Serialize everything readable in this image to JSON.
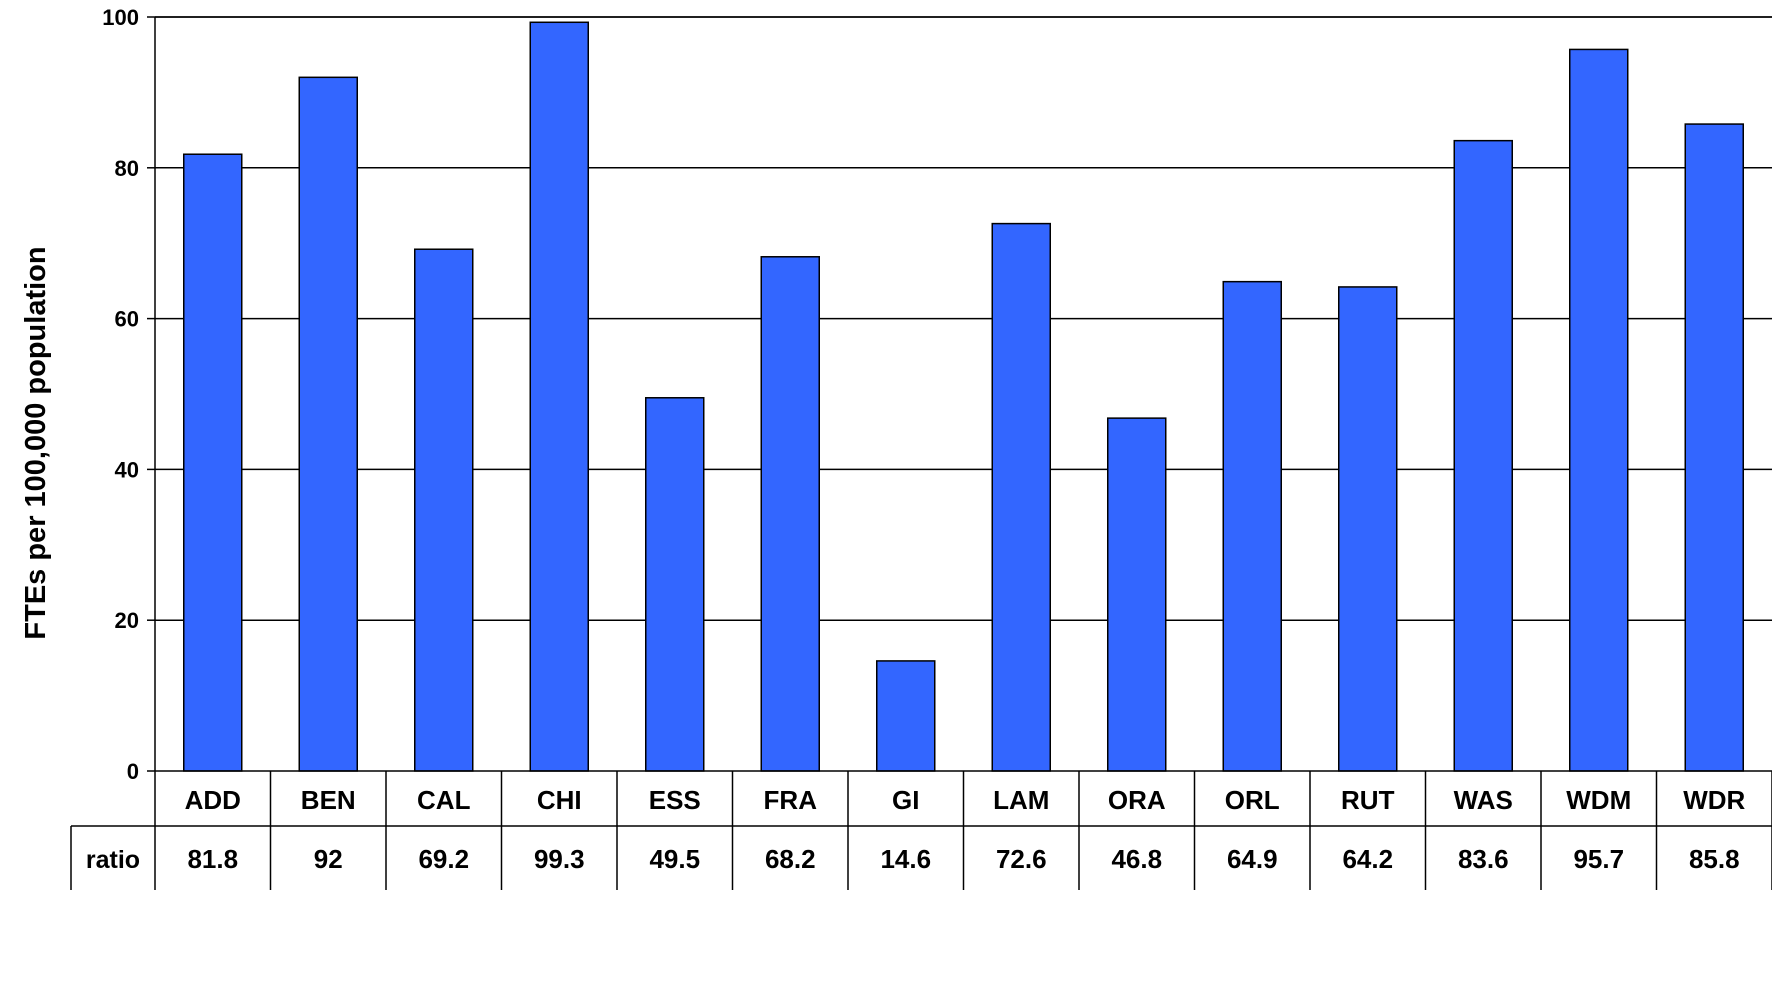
{
  "chart_data": {
    "type": "bar",
    "title": "",
    "xlabel": "",
    "ylabel": "FTEs per 100,000 population",
    "ylim": [
      0,
      100
    ],
    "yticks": [
      0,
      20,
      40,
      60,
      80,
      100
    ],
    "grid": true,
    "categories": [
      "ADD",
      "BEN",
      "CAL",
      "CHI",
      "ESS",
      "FRA",
      "GI",
      "LAM",
      "ORA",
      "ORL",
      "RUT",
      "WAS",
      "WDM",
      "WDR"
    ],
    "series": [
      {
        "name": "ratio",
        "values": [
          81.8,
          92,
          69.2,
          99.3,
          49.5,
          68.2,
          14.6,
          72.6,
          46.8,
          64.9,
          64.2,
          83.6,
          95.7,
          85.8
        ]
      }
    ],
    "table": {
      "row_label": "ratio",
      "values": [
        "81.8",
        "92",
        "69.2",
        "99.3",
        "49.5",
        "68.2",
        "14.6",
        "72.6",
        "46.8",
        "64.9",
        "64.2",
        "83.6",
        "95.7",
        "85.8"
      ]
    },
    "bar_color": "#3366ff"
  }
}
